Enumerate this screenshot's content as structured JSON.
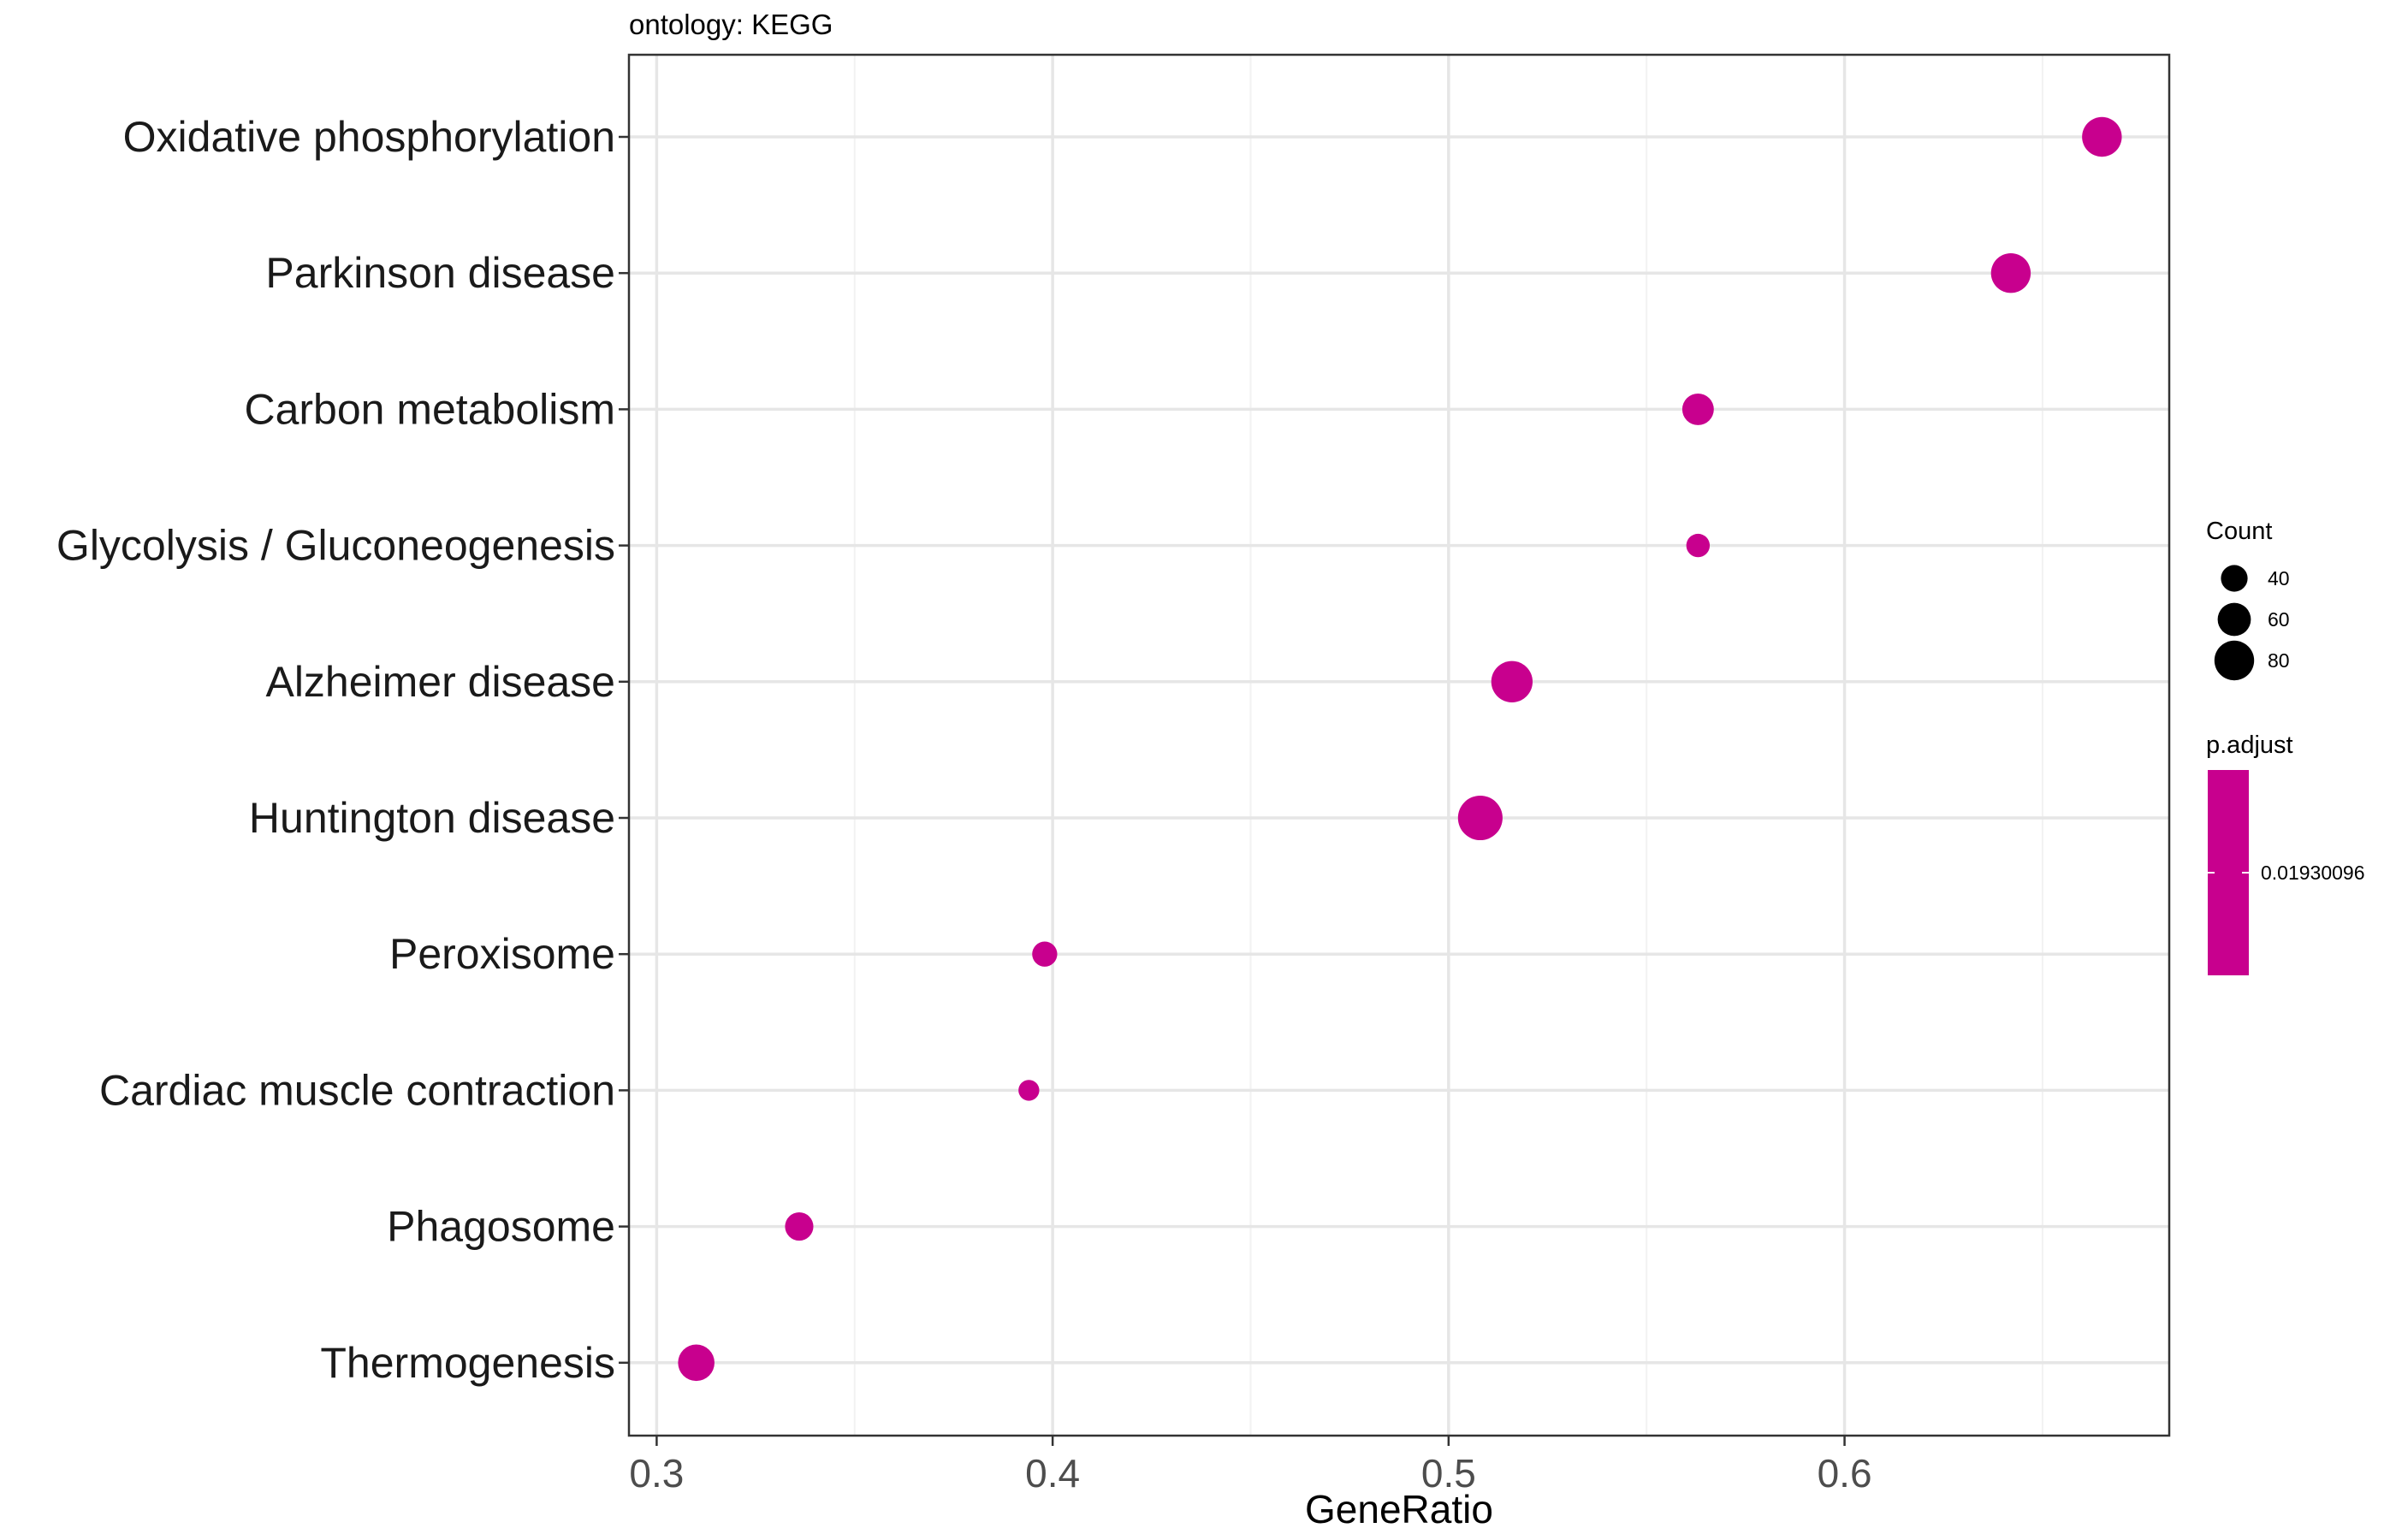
{
  "chart_data": {
    "type": "scatter",
    "subtitle": "ontology: KEGG",
    "xlabel": "GeneRatio",
    "ylabel": "",
    "xlim": [
      0.293,
      0.682
    ],
    "xticks": [
      0.3,
      0.4,
      0.5,
      0.6
    ],
    "xtick_labels": [
      "0.3",
      "0.4",
      "0.5",
      "0.6"
    ],
    "grid": true,
    "categories": [
      "Oxidative phosphorylation",
      "Parkinson disease",
      "Carbon metabolism",
      "Glycolysis / Gluconeogenesis",
      "Alzheimer disease",
      "Huntington disease",
      "Peroxisome",
      "Cardiac muscle contraction",
      "Phagosome",
      "Thermogenesis"
    ],
    "points": [
      {
        "category": "Oxidative phosphorylation",
        "x": 0.665,
        "count": 80
      },
      {
        "category": "Parkinson disease",
        "x": 0.642,
        "count": 80
      },
      {
        "category": "Carbon metabolism",
        "x": 0.563,
        "count": 55
      },
      {
        "category": "Glycolysis / Gluconeogenesis",
        "x": 0.563,
        "count": 30
      },
      {
        "category": "Alzheimer disease",
        "x": 0.516,
        "count": 85
      },
      {
        "category": "Huntington disease",
        "x": 0.508,
        "count": 95
      },
      {
        "category": "Peroxisome",
        "x": 0.398,
        "count": 35
      },
      {
        "category": "Cardiac muscle contraction",
        "x": 0.394,
        "count": 22
      },
      {
        "category": "Phagosome",
        "x": 0.336,
        "count": 45
      },
      {
        "category": "Thermogenesis",
        "x": 0.31,
        "count": 70
      }
    ],
    "point_color": "#C8008E",
    "legend": {
      "placement": "right",
      "size_title": "Count",
      "size_values": [
        40,
        60,
        80
      ],
      "size_labels": [
        "40",
        "60",
        "80"
      ],
      "color_title": "p.adjust",
      "color_value_label": "0.01930096",
      "color": "#C8008E"
    }
  }
}
